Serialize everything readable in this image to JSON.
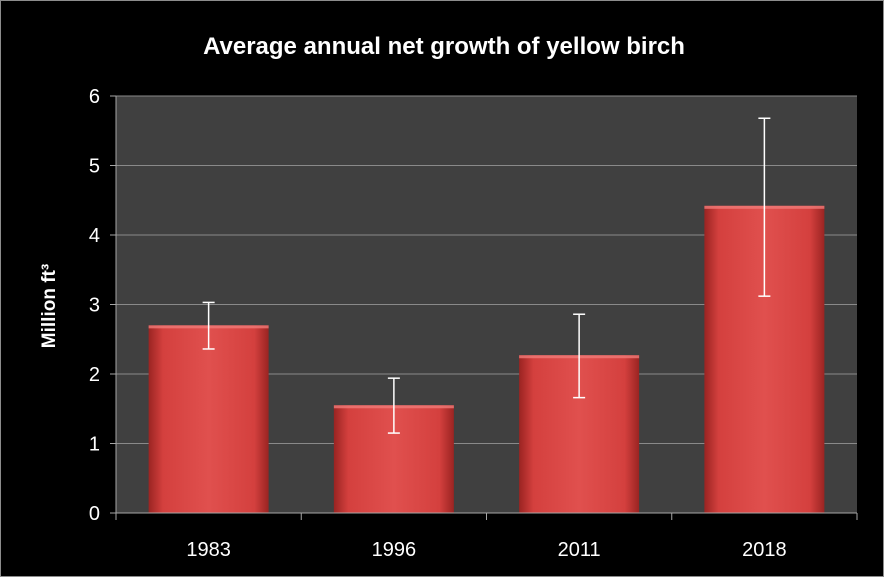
{
  "chart_data": {
    "type": "bar",
    "title": "Average annual net growth of yellow birch",
    "ylabel": "Million ft³",
    "xlabel": "",
    "categories": [
      "1983",
      "1996",
      "2011",
      "2018"
    ],
    "values": [
      2.7,
      1.55,
      2.27,
      4.42
    ],
    "error_high": [
      3.03,
      1.94,
      2.86,
      5.68
    ],
    "error_low": [
      2.36,
      1.15,
      1.66,
      3.12
    ],
    "ylim": [
      0,
      6
    ],
    "yticks": [
      "0",
      "1",
      "2",
      "3",
      "4",
      "5",
      "6"
    ],
    "grid": true,
    "legend": "none",
    "colors": {
      "background": "#000000",
      "plot_area": "#404040",
      "bar": "#d9413f",
      "bar_dark": "#8f1f1d",
      "gridline": "#8a8a8a",
      "error_bar": "#ffffff"
    }
  }
}
